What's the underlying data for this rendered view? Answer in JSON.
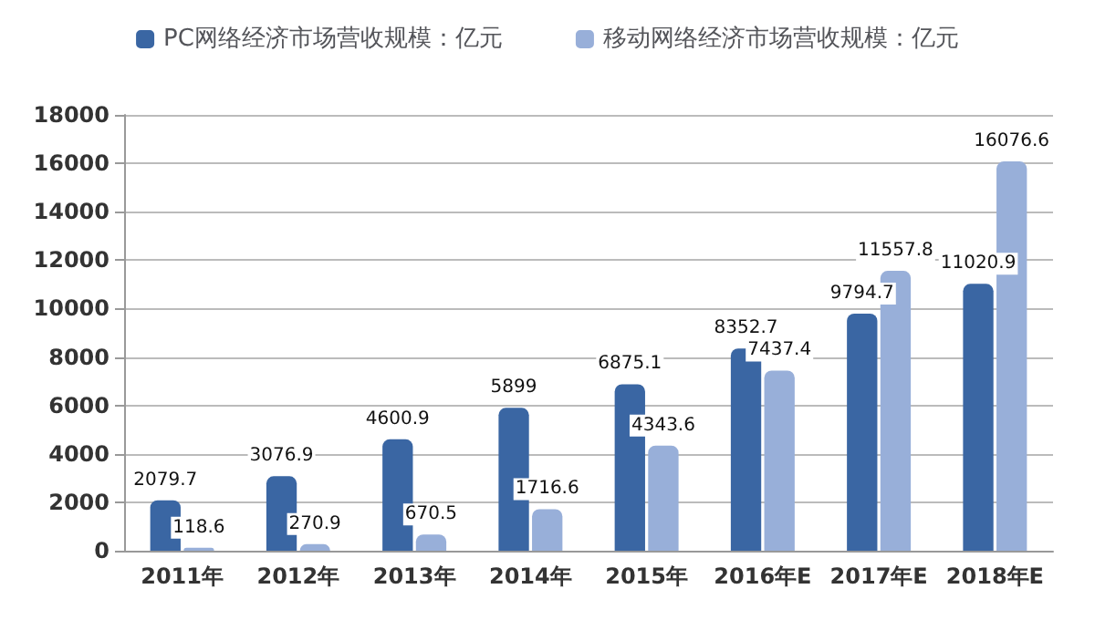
{
  "chart_data": {
    "type": "bar",
    "categories": [
      "2011年",
      "2012年",
      "2013年",
      "2014年",
      "2015年",
      "2016年E",
      "2017年E",
      "2018年E"
    ],
    "series": [
      {
        "name": "PC网络经济市场营收规模：亿元",
        "color": "#3a66a3",
        "values": [
          2079.7,
          3076.9,
          4600.9,
          5899,
          6875.1,
          8352.7,
          9794.7,
          11020.9
        ]
      },
      {
        "name": "移动网络经济市场营收规模：亿元",
        "color": "#98afd9",
        "values": [
          118.6,
          270.9,
          670.5,
          1716.6,
          4343.6,
          7437.4,
          11557.8,
          16076.6
        ]
      }
    ],
    "ylim": [
      0,
      18000
    ],
    "yticks": [
      0,
      2000,
      4000,
      6000,
      8000,
      10000,
      12000,
      14000,
      16000,
      18000
    ],
    "grid": "y",
    "legend": "top",
    "data_labels": true
  }
}
